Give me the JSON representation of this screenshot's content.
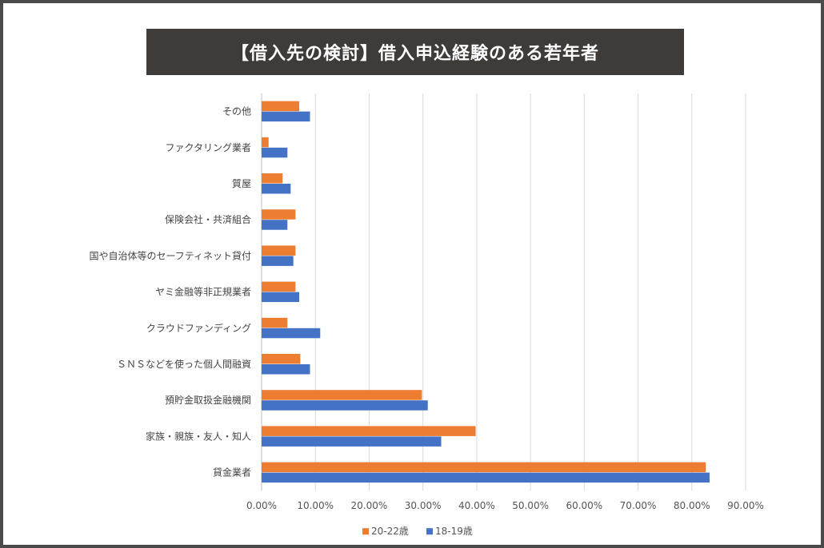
{
  "chart_data": {
    "type": "bar",
    "orientation": "horizontal",
    "title": "【借入先の検討】借入申込経験のある若年者",
    "categories": [
      "その他",
      "ファクタリング業者",
      "質屋",
      "保険会社・共済組合",
      "国や自治体等のセーフティネット貸付",
      "ヤミ金融等非正規業者",
      "クラウドファンディング",
      "ＳＮＳなどを使った個人間融資",
      "預貯金取扱金融機関",
      "家族・親族・友人・知人",
      "貸金業者"
    ],
    "series": [
      {
        "name": "20-22歳",
        "color": "#ed7d31",
        "values": [
          7.0,
          1.3,
          3.9,
          6.3,
          6.3,
          6.3,
          4.8,
          7.2,
          29.8,
          39.8,
          82.6
        ]
      },
      {
        "name": "18-19歳",
        "color": "#4472c4",
        "values": [
          9.0,
          4.8,
          5.4,
          4.8,
          5.9,
          7.0,
          10.9,
          9.0,
          30.9,
          33.4,
          83.3
        ]
      }
    ],
    "xlim": [
      0,
      90
    ],
    "xticks": [
      "0.00%",
      "10.00%",
      "20.00%",
      "30.00%",
      "40.00%",
      "50.00%",
      "60.00%",
      "70.00%",
      "80.00%",
      "90.00%"
    ],
    "grid": true,
    "legend_position": "bottom",
    "xlabel": "",
    "ylabel": ""
  }
}
